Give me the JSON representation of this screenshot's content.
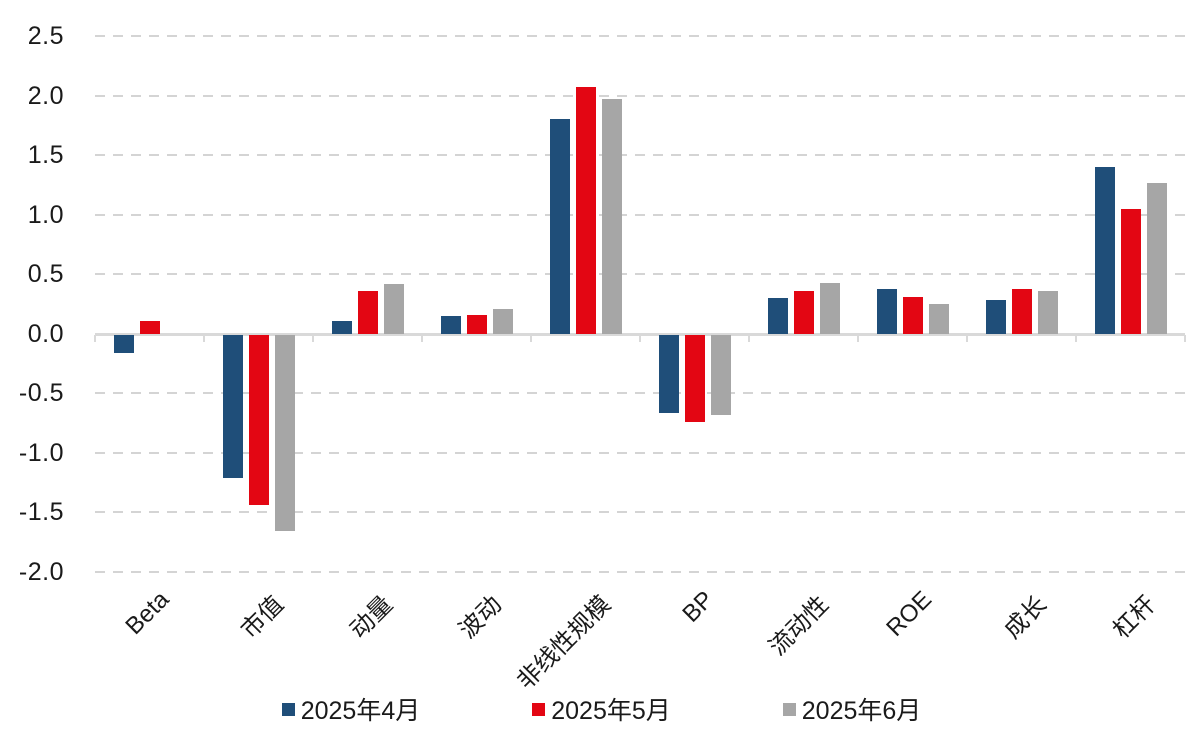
{
  "chart_data": {
    "type": "bar",
    "title": "",
    "categories": [
      "Beta",
      "市值",
      "动量",
      "波动",
      "非线性规模",
      "BP",
      "流动性",
      "ROE",
      "成长",
      "杠杆"
    ],
    "series": [
      {
        "name": "2025年4月",
        "color": "#1F4E79",
        "values": [
          -0.15,
          -1.2,
          0.11,
          0.15,
          1.8,
          -0.66,
          0.3,
          0.38,
          0.28,
          1.4
        ]
      },
      {
        "name": "2025年5月",
        "color": "#E30613",
        "values": [
          0.11,
          -1.43,
          0.36,
          0.16,
          2.07,
          -0.73,
          0.36,
          0.31,
          0.38,
          1.05
        ]
      },
      {
        "name": "2025年6月",
        "color": "#A6A6A6",
        "values": [
          0.0,
          -1.65,
          0.42,
          0.21,
          1.97,
          -0.67,
          0.43,
          0.25,
          0.36,
          1.27
        ]
      }
    ],
    "y_ticks": [
      2.5,
      2.0,
      1.5,
      1.0,
      0.5,
      0.0,
      -0.5,
      -1.0,
      -1.5,
      -2.0
    ],
    "ylim": [
      -2.0,
      2.5
    ],
    "xlabel": "",
    "ylabel": "",
    "grid": "horizontal-dashed",
    "legend_position": "bottom",
    "x_label_rotation_deg": -45
  },
  "style_colors": {
    "axis_line": "#D9D9D9",
    "gridline": "#D4D4D4",
    "text": "#1A1A1A",
    "background": "#FFFFFF"
  }
}
